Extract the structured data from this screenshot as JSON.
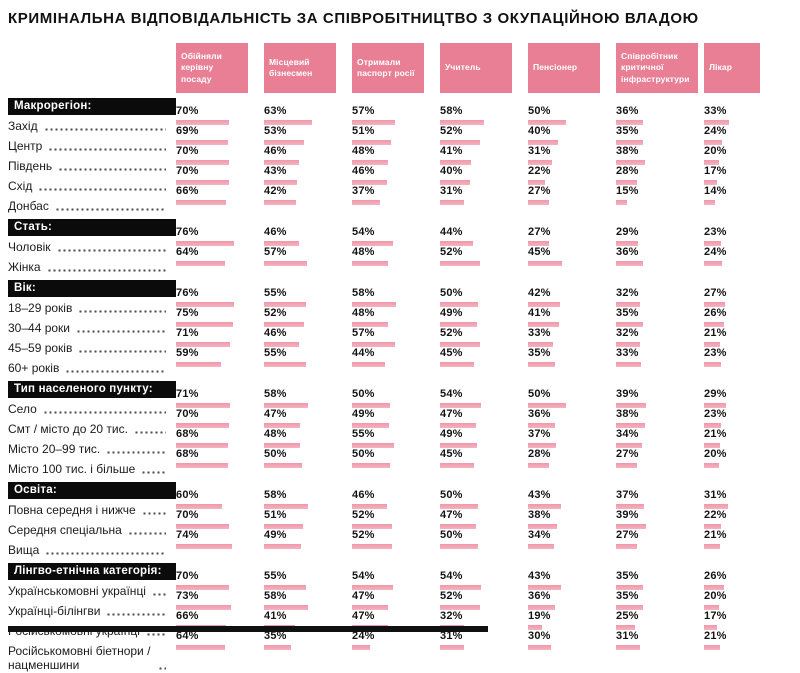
{
  "title": "КРИМІНАЛЬНА ВІДПОВІДАЛЬНІСТЬ ЗА СПІВРОБІТНИЦТВО З ОКУПАЦІЙНОЮ ВЛАДОЮ",
  "colors": {
    "badge_bg": "#E87F95",
    "bar_fill": "#F3A6B6",
    "section_bg": "#0B0B0B",
    "section_text": "#FFFFFF",
    "text": "#1B1B1B"
  },
  "chart_data": {
    "type": "bar",
    "title": "КРИМІНАЛЬНА ВІДПОВІДАЛЬНІСТЬ ЗА СПІВРОБІТНИЦТВО З ОКУПАЦІЙНОЮ ВЛАДОЮ",
    "unit": "%",
    "xlim": [
      0,
      100
    ],
    "legend_position": "top",
    "grid": false,
    "columns": [
      "Обійняли керівну посаду",
      "Місцевий бізнесмен",
      "Отримали паспорт росії",
      "Учитель",
      "Пенсіонер",
      "Співробітник критичної інфраструктури",
      "Лікар"
    ],
    "sections": [
      {
        "label": "Макрорегіон:",
        "rows": [
          {
            "label": "Захід",
            "values": [
              70,
              63,
              57,
              58,
              50,
              36,
              33
            ]
          },
          {
            "label": "Центр",
            "values": [
              69,
              53,
              51,
              52,
              40,
              35,
              24
            ]
          },
          {
            "label": "Південь",
            "values": [
              70,
              46,
              48,
              41,
              31,
              38,
              20
            ]
          },
          {
            "label": "Схід",
            "values": [
              70,
              43,
              46,
              40,
              22,
              28,
              17
            ]
          },
          {
            "label": "Донбас",
            "values": [
              66,
              42,
              37,
              31,
              27,
              15,
              14
            ]
          }
        ]
      },
      {
        "label": "Стать:",
        "rows": [
          {
            "label": "Чоловік",
            "values": [
              76,
              46,
              54,
              44,
              27,
              29,
              23
            ]
          },
          {
            "label": "Жінка",
            "values": [
              64,
              57,
              48,
              52,
              45,
              36,
              24
            ]
          }
        ]
      },
      {
        "label": "Вік:",
        "rows": [
          {
            "label": "18–29 років",
            "values": [
              76,
              55,
              58,
              50,
              42,
              32,
              27
            ]
          },
          {
            "label": "30–44 роки",
            "values": [
              75,
              52,
              48,
              49,
              41,
              35,
              26
            ]
          },
          {
            "label": "45–59 років",
            "values": [
              71,
              46,
              57,
              52,
              33,
              32,
              21
            ]
          },
          {
            "label": "60+ років",
            "values": [
              59,
              55,
              44,
              45,
              35,
              33,
              23
            ]
          }
        ]
      },
      {
        "label": "Тип населеного пункту:",
        "rows": [
          {
            "label": "Село",
            "values": [
              71,
              58,
              50,
              54,
              50,
              39,
              29
            ]
          },
          {
            "label": "Смт / місто до 20 тис.",
            "values": [
              70,
              47,
              49,
              47,
              36,
              38,
              23
            ]
          },
          {
            "label": "Місто 20–99 тис.",
            "values": [
              68,
              48,
              55,
              49,
              37,
              34,
              21
            ]
          },
          {
            "label": "Місто 100 тис. і більше",
            "values": [
              68,
              50,
              50,
              45,
              28,
              27,
              20
            ]
          }
        ]
      },
      {
        "label": "Освіта:",
        "rows": [
          {
            "label": "Повна середня і нижче",
            "values": [
              60,
              58,
              46,
              50,
              43,
              37,
              31
            ]
          },
          {
            "label": "Середня спеціальна",
            "values": [
              70,
              51,
              52,
              47,
              38,
              39,
              22
            ]
          },
          {
            "label": "Вища",
            "values": [
              74,
              49,
              52,
              50,
              34,
              27,
              21
            ]
          }
        ]
      },
      {
        "label": "Лінгво-етнічна категорія:",
        "rows": [
          {
            "label": "Українськомовні українці",
            "values": [
              70,
              55,
              54,
              54,
              43,
              35,
              26
            ]
          },
          {
            "label": "Українці-білінгви",
            "values": [
              73,
              58,
              47,
              52,
              36,
              35,
              20
            ]
          },
          {
            "label": "Російськомовні українці",
            "values": [
              66,
              41,
              47,
              32,
              19,
              25,
              17
            ]
          },
          {
            "label": "Російськомовні біетнори / нацменшини",
            "values": [
              64,
              35,
              24,
              31,
              30,
              31,
              21
            ]
          }
        ]
      }
    ]
  }
}
